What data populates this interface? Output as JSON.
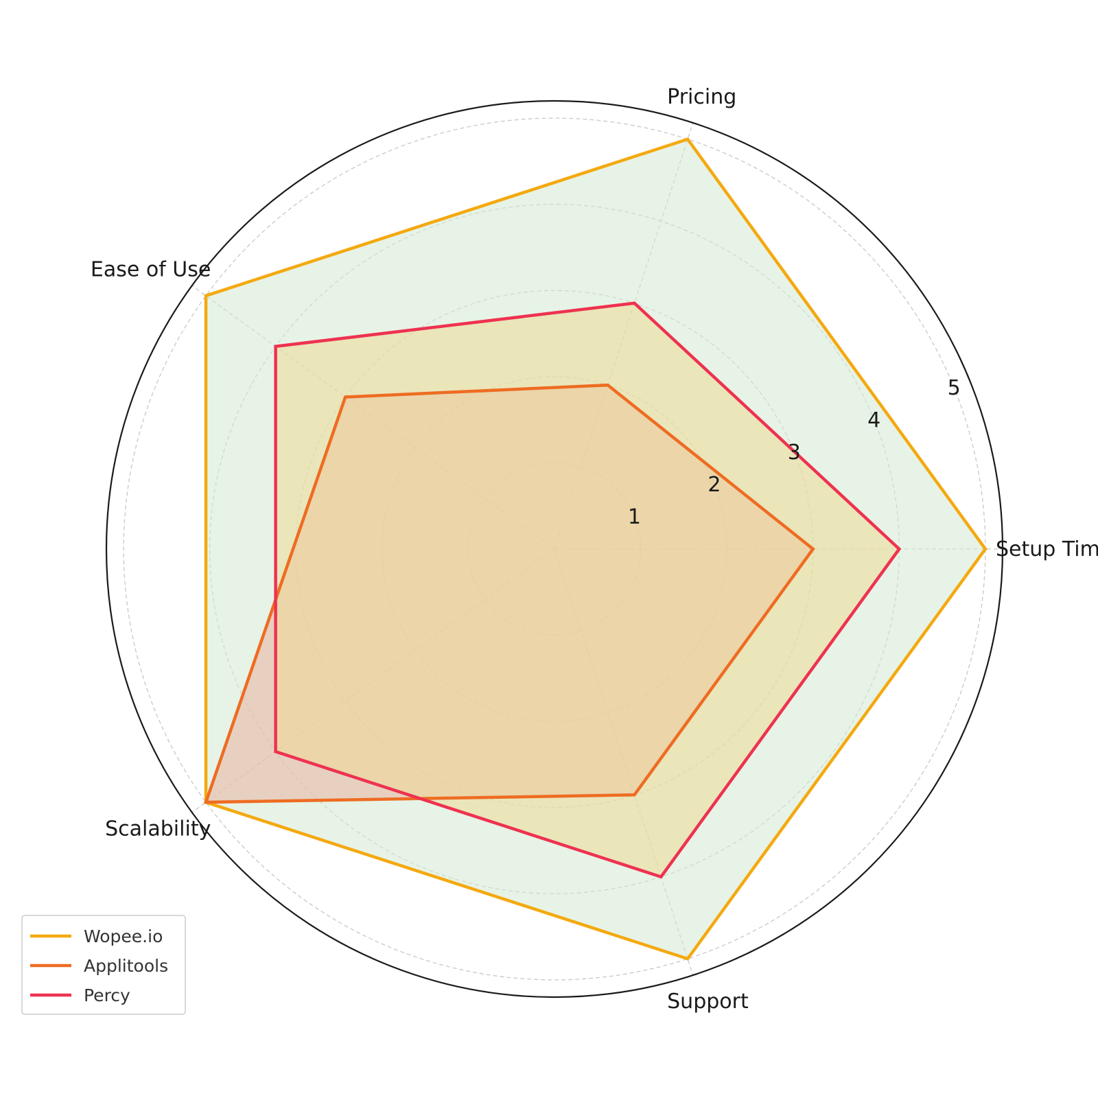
{
  "chart_data": {
    "type": "radar",
    "categories": [
      "Setup Time",
      "Pricing",
      "Ease of Use",
      "Scalability",
      "Support"
    ],
    "rlim": [
      0,
      5.2
    ],
    "rticks": [
      1,
      2,
      3,
      4,
      5
    ],
    "rtick_labels": [
      "1",
      "2",
      "3",
      "4",
      "5"
    ],
    "grid": true,
    "legend_position": "lower-left",
    "series": [
      {
        "name": "Wopee.io",
        "values": [
          5,
          5,
          5,
          5,
          5
        ],
        "color": "#f4a90f",
        "fill": "#d3e9d1"
      },
      {
        "name": "Applitools",
        "values": [
          3,
          2,
          3,
          5,
          3
        ],
        "color": "#ee6c22",
        "fill": "#e8b3a0"
      },
      {
        "name": "Percy",
        "values": [
          4,
          3,
          4,
          4,
          4
        ],
        "color": "#ee3250",
        "fill": "#efd996"
      }
    ]
  }
}
